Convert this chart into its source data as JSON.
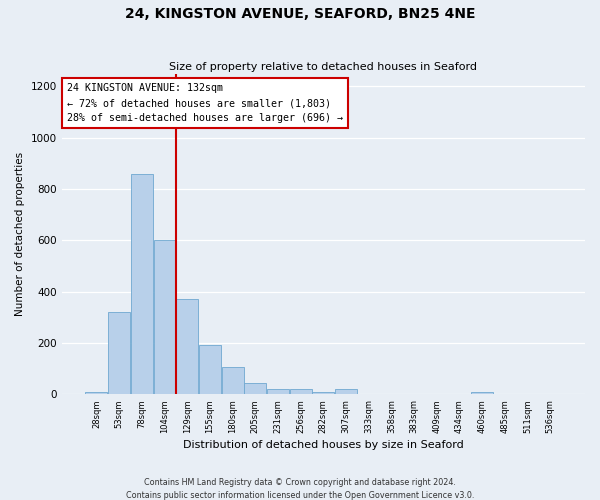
{
  "title": "24, KINGSTON AVENUE, SEAFORD, BN25 4NE",
  "subtitle": "Size of property relative to detached houses in Seaford",
  "xlabel": "Distribution of detached houses by size in Seaford",
  "ylabel": "Number of detached properties",
  "bar_values": [
    10,
    320,
    860,
    600,
    370,
    190,
    105,
    45,
    20,
    20,
    10,
    20,
    0,
    0,
    0,
    0,
    0,
    10,
    0,
    0,
    0
  ],
  "bin_labels": [
    "28sqm",
    "53sqm",
    "78sqm",
    "104sqm",
    "129sqm",
    "155sqm",
    "180sqm",
    "205sqm",
    "231sqm",
    "256sqm",
    "282sqm",
    "307sqm",
    "333sqm",
    "358sqm",
    "383sqm",
    "409sqm",
    "434sqm",
    "460sqm",
    "485sqm",
    "511sqm",
    "536sqm"
  ],
  "bar_color": "#b8d0ea",
  "bar_edge_color": "#6fa8d0",
  "vline_color": "#cc0000",
  "vline_position": 4.5,
  "annotation_title": "24 KINGSTON AVENUE: 132sqm",
  "annotation_line1": "← 72% of detached houses are smaller (1,803)",
  "annotation_line2": "28% of semi-detached houses are larger (696) →",
  "annotation_box_color": "#cc0000",
  "ylim": [
    0,
    1250
  ],
  "yticks": [
    0,
    200,
    400,
    600,
    800,
    1000,
    1200
  ],
  "background_color": "#e8eef5",
  "footer_line1": "Contains HM Land Registry data © Crown copyright and database right 2024.",
  "footer_line2": "Contains public sector information licensed under the Open Government Licence v3.0."
}
